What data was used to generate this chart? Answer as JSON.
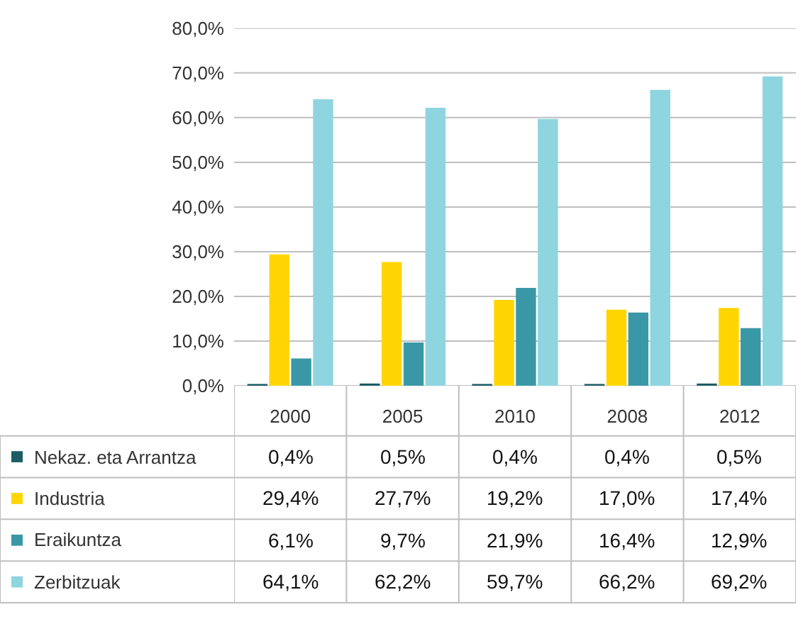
{
  "chart_data": {
    "type": "bar",
    "categories": [
      "2000",
      "2005",
      "2010",
      "2008",
      "2012"
    ],
    "series": [
      {
        "name": "Nekaz. eta Arrantza",
        "color": "#1d5c66",
        "values": [
          0.4,
          0.5,
          0.4,
          0.4,
          0.5
        ],
        "value_labels": [
          "0,4%",
          "0,5%",
          "0,4%",
          "0,4%",
          "0,5%"
        ]
      },
      {
        "name": "Industria",
        "color": "#ffd500",
        "values": [
          29.4,
          27.7,
          19.2,
          17.0,
          17.4
        ],
        "value_labels": [
          "29,4%",
          "27,7%",
          "19,2%",
          "17,0%",
          "17,4%"
        ]
      },
      {
        "name": "Eraikuntza",
        "color": "#3a98a6",
        "values": [
          6.1,
          9.7,
          21.9,
          16.4,
          12.9
        ],
        "value_labels": [
          "6,1%",
          "9,7%",
          "21,9%",
          "16,4%",
          "12,9%"
        ]
      },
      {
        "name": "Zerbitzuak",
        "color": "#8ed5df",
        "values": [
          64.1,
          62.2,
          59.7,
          66.2,
          69.2
        ],
        "value_labels": [
          "64,1%",
          "62,2%",
          "59,7%",
          "66,2%",
          "69,2%"
        ]
      }
    ],
    "ylim": [
      0,
      80
    ],
    "yticks": [
      {
        "value": 0,
        "label": "0,0%"
      },
      {
        "value": 10,
        "label": "10,0%"
      },
      {
        "value": 20,
        "label": "20,0%"
      },
      {
        "value": 30,
        "label": "30,0%"
      },
      {
        "value": 40,
        "label": "40,0%"
      },
      {
        "value": 50,
        "label": "50,0%"
      },
      {
        "value": 60,
        "label": "60,0%"
      },
      {
        "value": 70,
        "label": "70,0%"
      },
      {
        "value": 80,
        "label": "80,0%"
      }
    ],
    "grid": "y",
    "legend": "bottom left"
  }
}
